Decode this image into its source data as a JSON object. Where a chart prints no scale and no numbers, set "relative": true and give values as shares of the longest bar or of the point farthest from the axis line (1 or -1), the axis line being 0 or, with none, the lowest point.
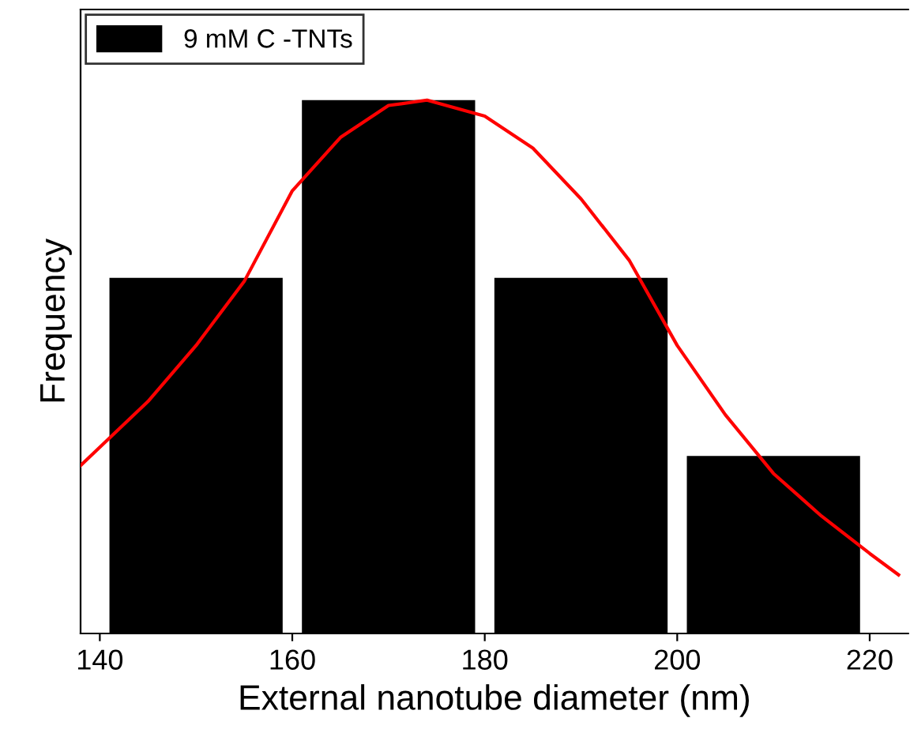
{
  "chart_data": {
    "type": "bar",
    "xlabel": "External nanotube diameter (nm)",
    "ylabel": "Frequency",
    "relative": true,
    "xlim": [
      138,
      224
    ],
    "xticks": [
      140,
      160,
      180,
      200,
      220
    ],
    "x": [
      150,
      170,
      190,
      210
    ],
    "series": [
      {
        "name": "9 mM C -TNTs",
        "color": "#000000",
        "values": [
          0.667,
          1,
          0.667,
          0.333
        ]
      },
      {
        "type": "line",
        "color": "#ff0000",
        "x": [
          138,
          145,
          150,
          155,
          160,
          165,
          170,
          174,
          180,
          185,
          190,
          195,
          200,
          205,
          210,
          215,
          220,
          223
        ],
        "values": [
          0.315,
          0.435,
          0.54,
          0.66,
          0.83,
          0.93,
          0.99,
          1.0,
          0.97,
          0.91,
          0.815,
          0.7,
          0.54,
          0.41,
          0.3,
          0.22,
          0.15,
          0.11
        ]
      }
    ],
    "legend": "top left"
  }
}
